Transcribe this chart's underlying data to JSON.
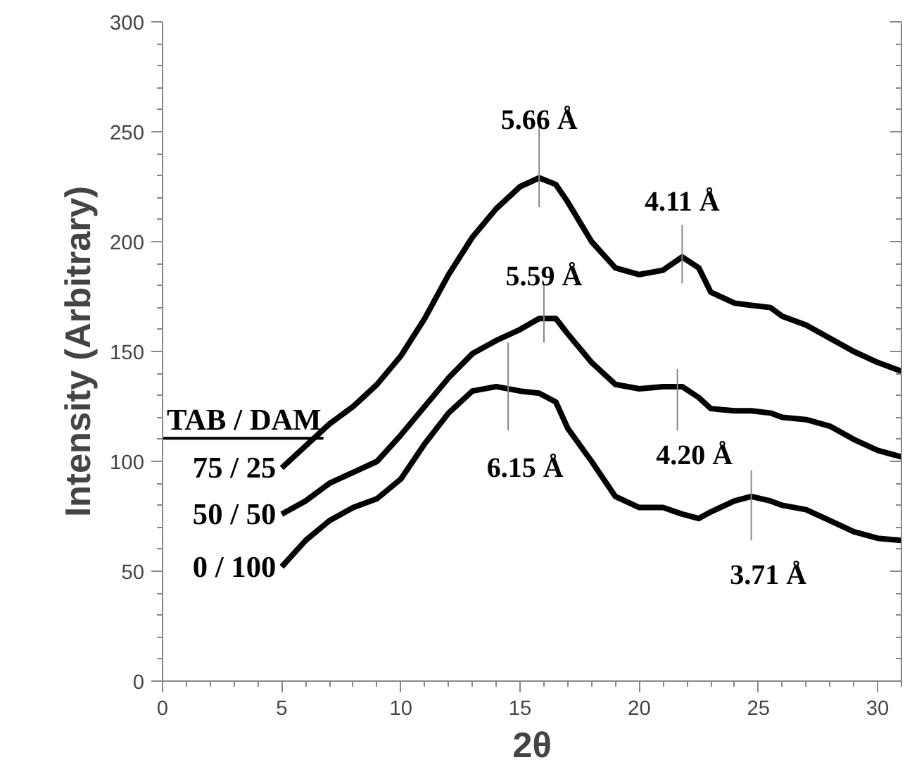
{
  "chart_data": {
    "type": "line",
    "xlabel": "2θ",
    "ylabel": "Intensity (Arbitrary)",
    "legend_title": "TAB / DAM",
    "x": [
      5,
      6,
      7,
      8,
      9,
      10,
      11,
      12,
      13,
      14,
      15,
      15.8,
      16.5,
      17,
      18,
      19,
      20,
      21,
      21.8,
      22.5,
      23,
      24,
      24.7,
      25.5,
      26,
      27,
      28,
      29,
      30,
      31
    ],
    "series": [
      {
        "name": "75 / 25",
        "color": "#000000",
        "values": [
          97,
          107,
          117,
          125,
          135,
          148,
          165,
          185,
          202,
          215,
          225,
          229,
          226,
          218,
          200,
          188,
          185,
          187,
          193,
          188,
          177,
          172,
          171,
          170,
          166,
          162,
          156,
          150,
          145,
          141
        ]
      },
      {
        "name": "50 / 50",
        "color": "#000000",
        "values": [
          76,
          82,
          90,
          95,
          100,
          112,
          125,
          138,
          149,
          155,
          160,
          165,
          165,
          158,
          145,
          135,
          133,
          134,
          134,
          129,
          124,
          123,
          123,
          122,
          120,
          119,
          116,
          110,
          105,
          102
        ]
      },
      {
        "name": "0 / 100",
        "color": "#000000",
        "values": [
          52,
          64,
          73,
          79,
          83,
          92,
          108,
          122,
          132,
          134,
          132,
          131,
          127,
          115,
          100,
          84,
          79,
          79,
          76,
          74,
          77,
          82,
          84,
          82,
          80,
          78,
          73,
          68,
          65,
          64
        ]
      }
    ],
    "annotations": [
      {
        "text": "5.66 Å",
        "x": 15.8,
        "y": 229
      },
      {
        "text": "4.11 Å",
        "x": 21.8,
        "y": 193
      },
      {
        "text": "5.59 Å",
        "x": 16,
        "y": 166
      },
      {
        "text": "4.20 Å",
        "x": 21.6,
        "y": 134
      },
      {
        "text": "6.15 Å",
        "x": 14.5,
        "y": 134
      },
      {
        "text": "3.71 Å",
        "x": 24.7,
        "y": 84
      }
    ],
    "xlim": [
      0,
      31
    ],
    "ylim": [
      0,
      300
    ],
    "xticks": [
      0,
      5,
      10,
      15,
      20,
      25,
      30
    ],
    "yticks": [
      0,
      50,
      100,
      150,
      200,
      250,
      300
    ],
    "grid": false,
    "legend": false,
    "marker": "none",
    "line_style": "solid"
  }
}
